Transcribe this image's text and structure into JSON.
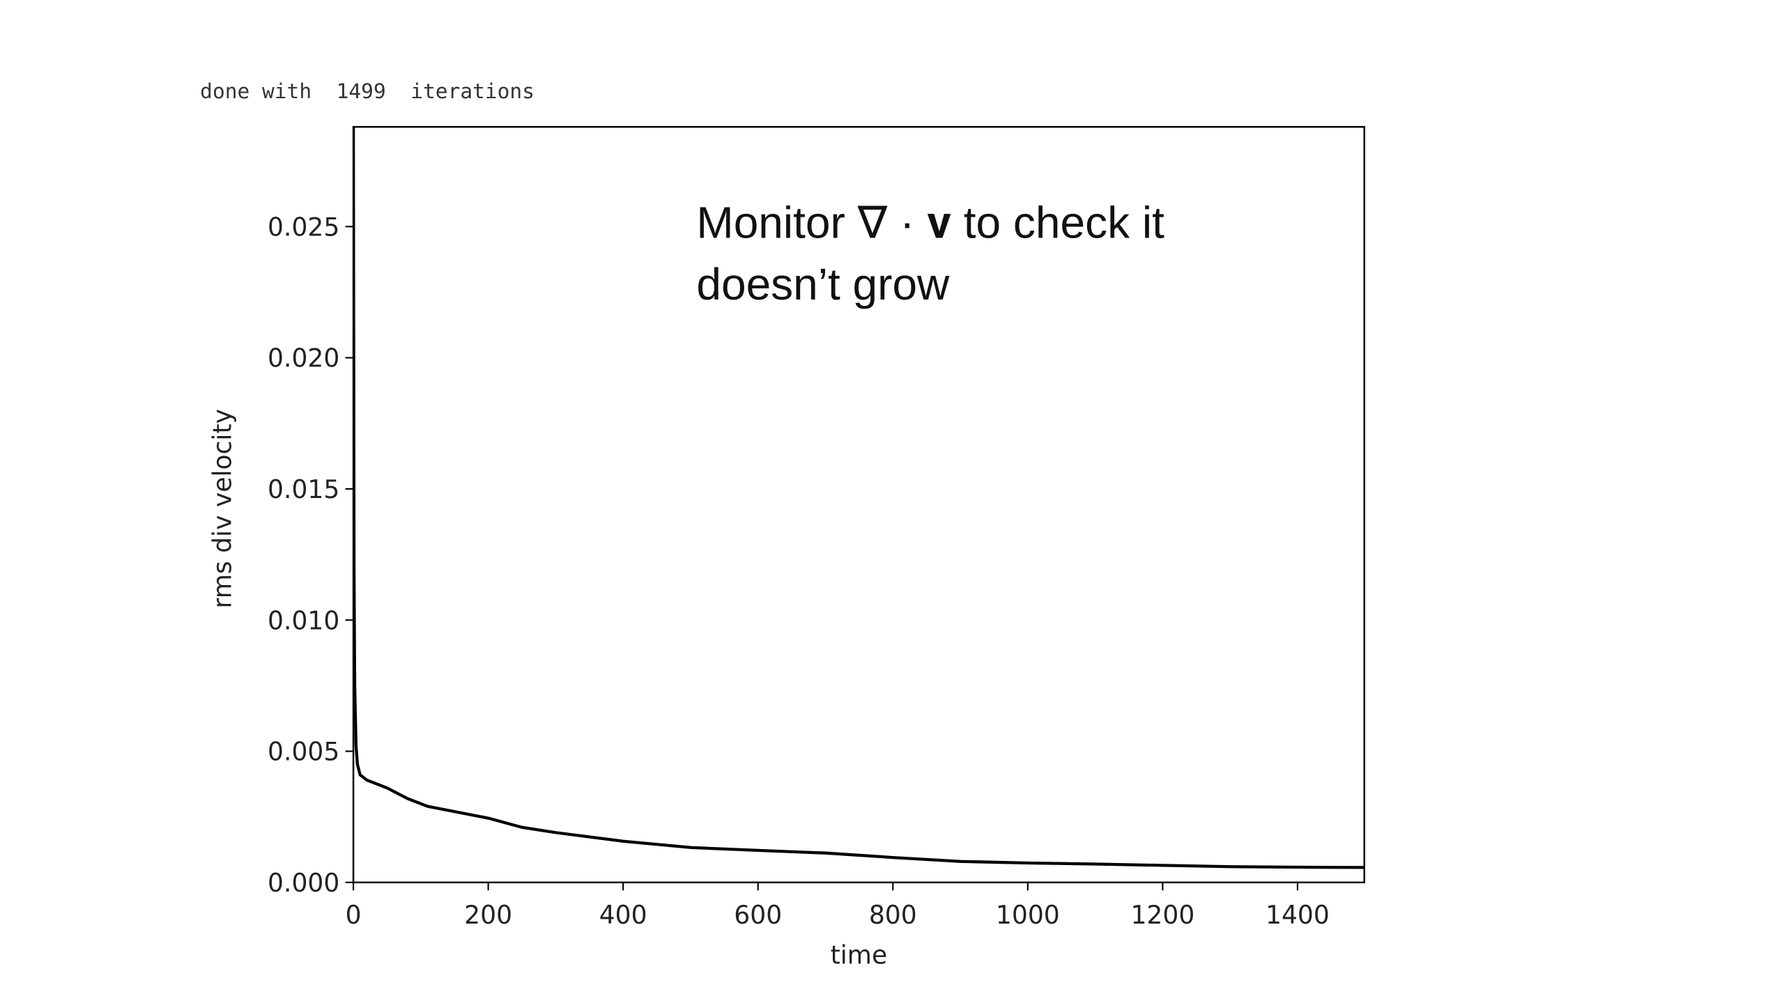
{
  "chart_data": {
    "type": "line",
    "header": "done with  1499  iterations",
    "annotation": [
      "Monitor ∇ · 𝐯 to check it",
      "doesn’t grow"
    ],
    "xlabel": "time",
    "ylabel": "rms div velocity",
    "x": [
      0,
      1,
      2,
      4,
      6,
      10,
      20,
      50,
      80,
      110,
      150,
      200,
      250,
      300,
      400,
      500,
      600,
      700,
      800,
      900,
      1000,
      1100,
      1200,
      1300,
      1400,
      1499
    ],
    "series": [
      {
        "name": "rms div velocity",
        "color": "#000000",
        "values": [
          0.03,
          0.012,
          0.0075,
          0.0052,
          0.0045,
          0.0041,
          0.0039,
          0.0036,
          0.0032,
          0.0029,
          0.0027,
          0.00245,
          0.0021,
          0.0019,
          0.00157,
          0.00133,
          0.00122,
          0.00112,
          0.00095,
          0.0008,
          0.00074,
          0.0007,
          0.00065,
          0.0006,
          0.00058,
          0.00057
        ]
      }
    ],
    "xlim": [
      0,
      1499
    ],
    "ylim": [
      0,
      0.0288
    ],
    "xticks": [
      0,
      200,
      400,
      600,
      800,
      1000,
      1200,
      1400
    ],
    "yticks": [
      {
        "value": 0,
        "label": "0.000"
      },
      0.005,
      {
        "value": 0.01,
        "label": "0.010"
      },
      0.015,
      {
        "value": 0.02,
        "label": "0.020"
      },
      0.025
    ],
    "grid": false
  }
}
